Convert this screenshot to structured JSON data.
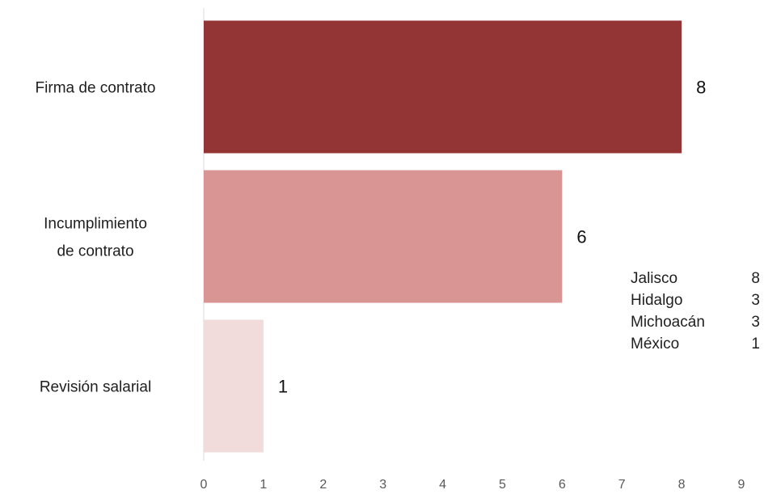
{
  "chart_data": {
    "type": "bar",
    "orientation": "horizontal",
    "title": "",
    "xlabel": "",
    "ylabel": "",
    "categories": [
      "Firma de contrato",
      "Incumplimiento de contrato",
      "Revisión salarial"
    ],
    "category_lines": [
      [
        "Firma de contrato"
      ],
      [
        "Incumplimiento",
        "de contrato"
      ],
      [
        "Revisión salarial"
      ]
    ],
    "values": [
      8,
      6,
      1
    ],
    "colors": [
      "#943535",
      "#d99594",
      "#f2dbdb"
    ],
    "xlim": [
      0,
      9
    ],
    "xticks": [
      0,
      1,
      2,
      3,
      4,
      5,
      6,
      7,
      8,
      9
    ],
    "grid": false,
    "legend": "none"
  },
  "side_table": {
    "rows": [
      {
        "state": "Jalisco",
        "value": "8"
      },
      {
        "state": "Hidalgo",
        "value": "3"
      },
      {
        "state": "Michoacán",
        "value": "3"
      },
      {
        "state": "México",
        "value": "1"
      }
    ]
  }
}
